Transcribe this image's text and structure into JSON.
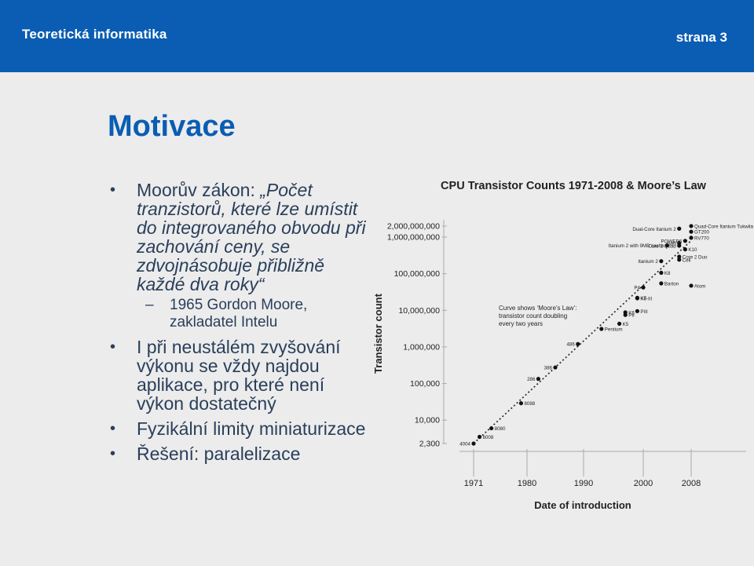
{
  "header": {
    "course": "Teoretická informatika",
    "page": "strana 3"
  },
  "slide": {
    "title": "Motivace",
    "bullet1_prefix": "Moorův zákon: ",
    "bullet1_italic": "„Počet tranzistorů, které lze umístit do integrovaného obvodu při zachování ceny, se zdvojnásobuje přibližně každé dva roky“",
    "sub1": "1965 Gordon Moore, zakladatel Intelu",
    "bullet2": "I při neustálém zvyšování výkonu se vždy najdou aplikace, pro které není výkon dostatečný",
    "bullet3": "Fyzikální limity miniaturizace",
    "bullet4": "Řešení: paralelizace"
  },
  "chart_data": {
    "type": "scatter",
    "title": "CPU Transistor Counts 1971-2008 & Moore’s Law",
    "xlabel": "Date of introduction",
    "ylabel": "Transistor count",
    "yscale": "log",
    "xlim": [
      1971,
      2008
    ],
    "ylim": [
      2300,
      2000000000
    ],
    "xticks": [
      1971,
      1980,
      1990,
      2000,
      2008
    ],
    "yticks": [
      {
        "v": 2300,
        "label": "2,300"
      },
      {
        "v": 10000,
        "label": "10,000"
      },
      {
        "v": 100000,
        "label": "100,000"
      },
      {
        "v": 1000000,
        "label": "1,000,000"
      },
      {
        "v": 10000000,
        "label": "10,000,000"
      },
      {
        "v": 100000000,
        "label": "100,000,000"
      },
      {
        "v": 1000000000,
        "label": "1,000,000,000"
      },
      {
        "v": 2000000000,
        "label": "2,000,000,000"
      }
    ],
    "annotation": [
      "Curve shows ‘Moore’s Law’:",
      "transistor count doubling",
      "every two years"
    ],
    "trend": {
      "x": [
        1971,
        2008
      ],
      "y": [
        2300,
        800000000
      ]
    },
    "points": [
      {
        "label": "4004",
        "x": 1971,
        "y": 2300,
        "side": "left"
      },
      {
        "label": "8008",
        "x": 1972,
        "y": 3500,
        "side": "right"
      },
      {
        "label": "8080",
        "x": 1974,
        "y": 6000,
        "side": "right"
      },
      {
        "label": "8088",
        "x": 1979,
        "y": 29000,
        "side": "right"
      },
      {
        "label": "286",
        "x": 1982,
        "y": 134000,
        "side": "left"
      },
      {
        "label": "386",
        "x": 1985,
        "y": 275000,
        "side": "left"
      },
      {
        "label": "486",
        "x": 1989,
        "y": 1200000,
        "side": "left"
      },
      {
        "label": "Pentium",
        "x": 1993,
        "y": 3100000,
        "side": "right"
      },
      {
        "label": "K5",
        "x": 1996,
        "y": 4300000,
        "side": "right"
      },
      {
        "label": "PII",
        "x": 1997,
        "y": 7500000,
        "side": "right"
      },
      {
        "label": "K6",
        "x": 1997,
        "y": 8800000,
        "side": "right"
      },
      {
        "label": "PIII",
        "x": 1999,
        "y": 9500000,
        "side": "right"
      },
      {
        "label": "K6-III",
        "x": 1999,
        "y": 21300000,
        "side": "right"
      },
      {
        "label": "K7",
        "x": 1999,
        "y": 22000000,
        "side": "right"
      },
      {
        "label": "P4",
        "x": 2000,
        "y": 42000000,
        "side": "left"
      },
      {
        "label": "Barton",
        "x": 2003,
        "y": 54300000,
        "side": "right"
      },
      {
        "label": "K8",
        "x": 2003,
        "y": 105900000,
        "side": "right"
      },
      {
        "label": "Itanium 2",
        "x": 2003,
        "y": 220000000,
        "side": "left"
      },
      {
        "label": "Atom",
        "x": 2008,
        "y": 47000000,
        "side": "right"
      },
      {
        "label": "Cell",
        "x": 2006,
        "y": 241000000,
        "side": "right"
      },
      {
        "label": "Core 2 Duo",
        "x": 2006,
        "y": 291000000,
        "side": "right"
      },
      {
        "label": "Core 2 Quad",
        "x": 2006,
        "y": 582000000,
        "side": "left"
      },
      {
        "label": "K10",
        "x": 2007,
        "y": 463000000,
        "side": "right"
      },
      {
        "label": "Itanium 2 with 9MB cache",
        "x": 2004,
        "y": 592000000,
        "side": "left"
      },
      {
        "label": "G80",
        "x": 2006,
        "y": 681000000,
        "side": "left"
      },
      {
        "label": "POWER6",
        "x": 2007,
        "y": 789000000,
        "side": "left"
      },
      {
        "label": "RV770",
        "x": 2008,
        "y": 956000000,
        "side": "right"
      },
      {
        "label": "GT200",
        "x": 2008,
        "y": 1400000000,
        "side": "right"
      },
      {
        "label": "Dual-Core Itanium 2",
        "x": 2006,
        "y": 1700000000,
        "side": "left"
      },
      {
        "label": "Quad-Core Itanium Tukwila",
        "x": 2008,
        "y": 2000000000,
        "side": "right"
      }
    ]
  }
}
